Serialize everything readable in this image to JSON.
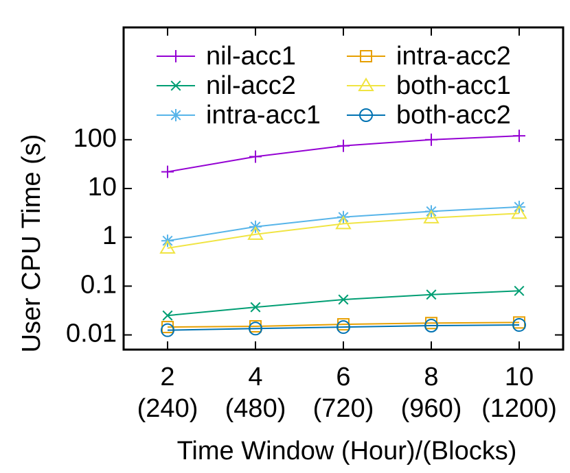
{
  "chart_data": {
    "type": "line",
    "x_label": "Time Window (Hour)/(Blocks)",
    "y_label": "User CPU Time (s)",
    "x": [
      2,
      4,
      6,
      8,
      10
    ],
    "xlim": [
      1,
      11
    ],
    "xticks": [
      2,
      4,
      6,
      8,
      10
    ],
    "x_sub_labels": [
      "(240)",
      "(480)",
      "(720)",
      "(960)",
      "(1200)"
    ],
    "ylim": [
      0.005,
      20000
    ],
    "y_scale": "log",
    "yticks": [
      0.01,
      0.1,
      1,
      10,
      100
    ],
    "legend_position": "top",
    "series": [
      {
        "name": "nil-acc1",
        "color": "#9400d3",
        "marker": "plus",
        "values": [
          22,
          45,
          75,
          100,
          120
        ]
      },
      {
        "name": "nil-acc2",
        "color": "#009e73",
        "marker": "cross",
        "values": [
          0.025,
          0.037,
          0.053,
          0.067,
          0.08
        ]
      },
      {
        "name": "intra-acc1",
        "color": "#56b4e9",
        "marker": "star",
        "values": [
          0.85,
          1.65,
          2.6,
          3.4,
          4.2
        ]
      },
      {
        "name": "intra-acc2",
        "color": "#e69f00",
        "marker": "square",
        "values": [
          0.0145,
          0.015,
          0.0165,
          0.0175,
          0.018
        ]
      },
      {
        "name": "both-acc1",
        "color": "#f0e442",
        "marker": "triangle",
        "values": [
          0.6,
          1.15,
          1.9,
          2.5,
          3.1
        ]
      },
      {
        "name": "both-acc2",
        "color": "#0072b2",
        "marker": "circle",
        "values": [
          0.0125,
          0.0135,
          0.0145,
          0.0155,
          0.016
        ]
      }
    ]
  }
}
